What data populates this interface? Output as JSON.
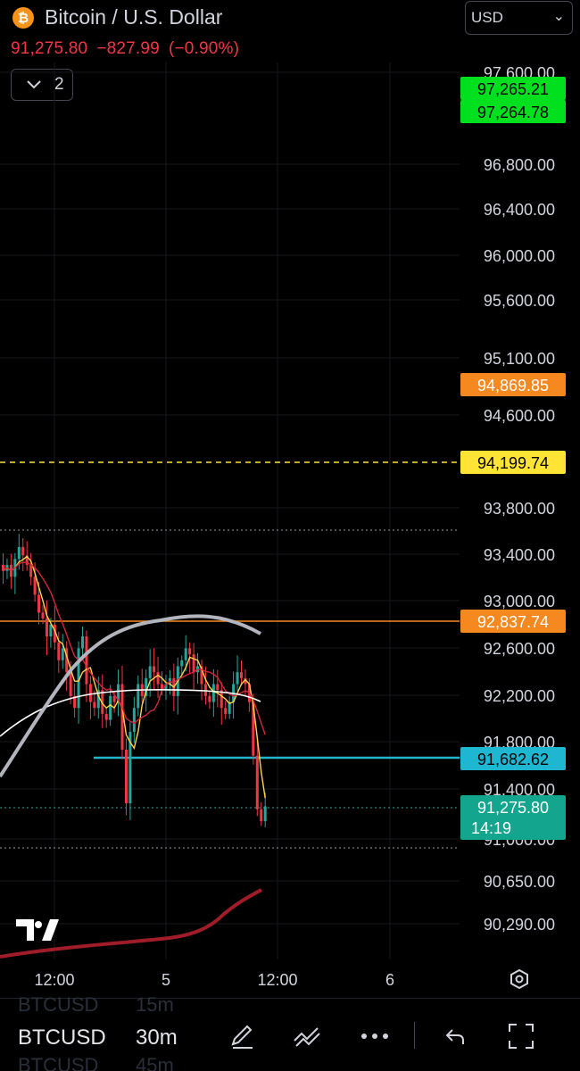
{
  "header": {
    "symbol_icon": "bitcoin-icon",
    "symbol_icon_glyph": "₿",
    "title": "Bitcoin / U.S. Dollar",
    "last_price": "91,275.80",
    "change": "−827.99",
    "change_percent": "(−0.90%)",
    "indicators_count": "2",
    "currency": "USD"
  },
  "colors": {
    "background": "#000000",
    "up": "#26a69a",
    "down": "#f23645",
    "green_label": "#00e01e",
    "orange": "#f5881f",
    "yellow": "#ffe436",
    "cyan": "#1fb6d1",
    "teal": "#13a58d",
    "ma_white": "#ffffff",
    "ma_gray": "#b2b5be",
    "ma_yellow": "#ffd24a",
    "ma_crimson": "#d4263a",
    "volume_curve": "#a01c28"
  },
  "price_axis": {
    "ticks": [
      "97,600.00",
      "96,800.00",
      "96,400.00",
      "96,000.00",
      "95,600.00",
      "95,100.00",
      "94,600.00",
      "93,800.00",
      "93,400.00",
      "93,000.00",
      "92,600.00",
      "92,200.00",
      "91,800.00",
      "91,400.00",
      "91,000.00",
      "90,650.00",
      "90,290.00"
    ],
    "labels": [
      {
        "text": "97,265.21",
        "color": "green_label",
        "text_color": "#000000"
      },
      {
        "text": "97,264.78",
        "color": "green_label",
        "text_color": "#000000"
      },
      {
        "text": "94,869.85",
        "color": "orange",
        "text_color": "#ffffff"
      },
      {
        "text": "94,199.74",
        "color": "yellow",
        "text_color": "#000000"
      },
      {
        "text": "92,837.74",
        "color": "orange",
        "text_color": "#ffffff"
      },
      {
        "text": "91,682.62",
        "color": "cyan",
        "text_color": "#000000"
      },
      {
        "text": "91,275.80",
        "sub": "14:19",
        "color": "teal",
        "text_color": "#ffffff"
      }
    ]
  },
  "time_axis": {
    "ticks": [
      "12:00",
      "5",
      "12:00",
      "6"
    ]
  },
  "bottom_bar": {
    "symbol": "BTCUSD",
    "timeframe": "30m",
    "timeframe_above": "15m",
    "timeframe_below": "45m",
    "tools": [
      "draw-icon",
      "chart-style-icon",
      "more-icon",
      "undo-icon",
      "fullscreen-icon"
    ],
    "settings_icon": "settings-icon",
    "logo": "TV"
  }
}
